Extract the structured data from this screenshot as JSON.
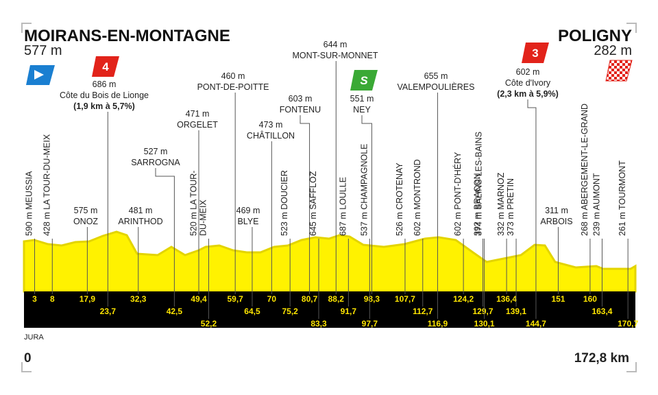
{
  "header": {
    "start": {
      "name": "MOIRANS-EN-MONTAGNE",
      "altitude": "577 m"
    },
    "finish": {
      "name": "POLIGNY",
      "altitude": "282 m"
    }
  },
  "markers": {
    "climb_1": "4",
    "sprint": "S",
    "climb_2": "3"
  },
  "waypoints": [
    {
      "lines": [
        "590 m MEUSSIA"
      ],
      "km": "3"
    },
    {
      "lines": [
        "428 m LA TOUR-DU-MEIX"
      ],
      "km": "8"
    },
    {
      "lines": [
        "575 m",
        "ONOZ"
      ],
      "km": "17,9"
    },
    {
      "lines": [
        "686 m",
        "Côte du Bois de Lionge",
        "(1,9 km à 5,7%)"
      ],
      "km": "23,7"
    },
    {
      "lines": [
        "481 m",
        "ARINTHOD"
      ],
      "km": "32,3"
    },
    {
      "lines": [
        "527 m",
        "SARROGNA"
      ],
      "km": "42,5"
    },
    {
      "lines": [
        "471 m",
        "ORGELET"
      ],
      "km": "49,4"
    },
    {
      "lines": [
        "520 m LA TOUR-",
        "DU-MEIX"
      ],
      "km": "52,2"
    },
    {
      "lines": [
        "460 m",
        "PONT-DE-POITTE"
      ],
      "km": "59,7"
    },
    {
      "lines": [
        "469 m",
        "BLYE"
      ],
      "km": "64,5"
    },
    {
      "lines": [
        "473 m",
        "CHÂTILLON"
      ],
      "km": "70"
    },
    {
      "lines": [
        "523 m DOUCIER"
      ],
      "km": "75,2"
    },
    {
      "lines": [
        "603 m",
        "FONTENU"
      ],
      "km": "80,7"
    },
    {
      "lines": [
        "645 m SAFFLOZ"
      ],
      "km": "83,3"
    },
    {
      "lines": [
        "644 m",
        "MONT-SUR-MONNET"
      ],
      "km": "88,2"
    },
    {
      "lines": [
        "687 m LOULLE"
      ],
      "km": "91,7"
    },
    {
      "lines": [
        "551 m",
        "NEY"
      ],
      "km": "98,3"
    },
    {
      "lines": [
        "537 m CHAMPAGNOLE"
      ],
      "km": "97,7"
    },
    {
      "lines": [
        "526 m CROTENAY"
      ],
      "km": "107,7"
    },
    {
      "lines": [
        "602 m MONTROND"
      ],
      "km": "112,7"
    },
    {
      "lines": [
        "655 m",
        "VALEMPOULIÈRES"
      ],
      "km": "116,9"
    },
    {
      "lines": [
        "602 m PONT-D'HÉRY"
      ],
      "km": "124,2"
    },
    {
      "lines": [
        "392 m BRACON"
      ],
      "km": "129,7"
    },
    {
      "lines": [
        "374 m SALINS-LES-BAINS"
      ],
      "km": "130,1"
    },
    {
      "lines": [
        "332 m MARNOZ"
      ],
      "km": "136,4"
    },
    {
      "lines": [
        "373 m PRETIN"
      ],
      "km": "139,1"
    },
    {
      "lines": [
        "602 m",
        "Côte d'Ivory",
        "(2,3 km à 5,9%)"
      ],
      "km": "144,7"
    },
    {
      "lines": [
        "311 m",
        "ARBOIS"
      ],
      "km": "151"
    },
    {
      "lines": [
        "268 m ABERGEMENT-LE-GRAND"
      ],
      "km": "160"
    },
    {
      "lines": [
        "239 m AUMONT"
      ],
      "km": "163,4"
    },
    {
      "lines": [
        "261 m TOURMONT"
      ],
      "km": "170,7"
    }
  ],
  "footer": {
    "region": "JURA",
    "start_km": "0",
    "end_km": "172,8 km"
  }
}
